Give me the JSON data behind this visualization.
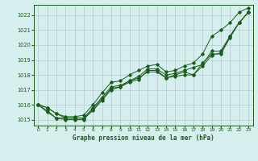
{
  "title": "Graphe pression niveau de la mer (hPa)",
  "background_color": "#d6eeee",
  "grid_color": "#b0cccc",
  "line_color": "#1a5c1a",
  "x_ticks": [
    0,
    1,
    2,
    3,
    4,
    5,
    6,
    7,
    8,
    9,
    10,
    11,
    12,
    13,
    14,
    15,
    16,
    17,
    18,
    19,
    20,
    21,
    22,
    23
  ],
  "y_ticks": [
    1015,
    1016,
    1017,
    1018,
    1019,
    1020,
    1021,
    1022
  ],
  "ylim": [
    1014.6,
    1022.7
  ],
  "xlim": [
    -0.5,
    23.5
  ],
  "series": [
    [
      1016.0,
      1015.8,
      1015.4,
      1015.1,
      1015.1,
      1015.1,
      1015.6,
      1016.3,
      1017.0,
      1017.2,
      1017.6,
      1017.8,
      1018.2,
      1018.2,
      1017.8,
      1017.9,
      1018.0,
      1018.0,
      1018.6,
      1019.3,
      1019.5,
      1020.6,
      1021.5,
      1022.2
    ],
    [
      1016.0,
      1015.6,
      1015.1,
      1015.0,
      1015.0,
      1015.0,
      1015.7,
      1016.4,
      1017.1,
      1017.2,
      1017.5,
      1017.7,
      1018.3,
      1018.3,
      1017.8,
      1018.0,
      1018.2,
      1018.0,
      1018.8,
      1019.4,
      1019.4,
      1020.5,
      1021.5,
      1022.2
    ],
    [
      1016.0,
      1015.5,
      1015.1,
      1015.1,
      1015.1,
      1015.1,
      1015.8,
      1016.5,
      1017.2,
      1017.3,
      1017.6,
      1017.9,
      1018.4,
      1018.4,
      1018.0,
      1018.1,
      1018.3,
      1018.5,
      1018.7,
      1019.6,
      1019.6,
      1020.6,
      1021.5,
      1022.2
    ],
    [
      1016.0,
      1015.8,
      1015.4,
      1015.2,
      1015.2,
      1015.3,
      1016.0,
      1016.8,
      1017.5,
      1017.6,
      1018.0,
      1018.3,
      1018.6,
      1018.7,
      1018.2,
      1018.3,
      1018.6,
      1018.8,
      1019.4,
      1020.6,
      1021.0,
      1021.5,
      1022.2,
      1022.5
    ]
  ]
}
